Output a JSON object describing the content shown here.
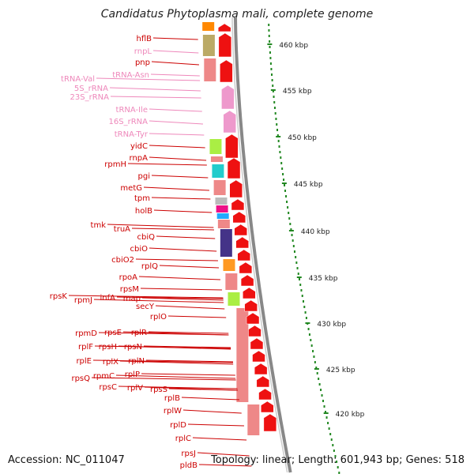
{
  "title": "Candidatus Phytoplasma mali, complete genome",
  "footer": {
    "accession": "Accession: NC_011047",
    "summary": "Topology: linear; Length: 601,943 bp; Genes: 518"
  },
  "colors": {
    "gene_label": "#cc0000",
    "rna_label": "#ee88bb",
    "scale_dots": "#228822",
    "arrow": "#ee1111",
    "backbone": "#888888"
  },
  "scale": [
    {
      "label": "460 kbp"
    },
    {
      "label": "455 kbp"
    },
    {
      "label": "450 kbp"
    },
    {
      "label": "445 kbp"
    },
    {
      "label": "440 kbp"
    },
    {
      "label": "435 kbp"
    },
    {
      "label": "430 kbp"
    },
    {
      "label": "425 kbp"
    },
    {
      "label": "420 kbp"
    }
  ],
  "labels": [
    {
      "text": "hflB",
      "kind": "gene"
    },
    {
      "text": "rnpL",
      "kind": "rna"
    },
    {
      "text": "pnp",
      "kind": "gene"
    },
    {
      "text": "tRNA-Asn",
      "kind": "rna"
    },
    {
      "text": "tRNA-Val",
      "kind": "rna"
    },
    {
      "text": "5S_rRNA",
      "kind": "rna"
    },
    {
      "text": "23S_rRNA",
      "kind": "rna"
    },
    {
      "text": "tRNA-Ile",
      "kind": "rna"
    },
    {
      "text": "16S_rRNA",
      "kind": "rna"
    },
    {
      "text": "tRNA-Tyr",
      "kind": "rna"
    },
    {
      "text": "yidC",
      "kind": "gene"
    },
    {
      "text": "rnpA",
      "kind": "gene"
    },
    {
      "text": "rpmH",
      "kind": "gene"
    },
    {
      "text": "pgi",
      "kind": "gene"
    },
    {
      "text": "metG",
      "kind": "gene"
    },
    {
      "text": "tpm",
      "kind": "gene"
    },
    {
      "text": "holB",
      "kind": "gene"
    },
    {
      "text": "tmk",
      "kind": "gene"
    },
    {
      "text": "truA",
      "kind": "gene"
    },
    {
      "text": "cbiQ",
      "kind": "gene"
    },
    {
      "text": "cbiO",
      "kind": "gene"
    },
    {
      "text": "cbiO2",
      "kind": "gene"
    },
    {
      "text": "rplQ",
      "kind": "gene"
    },
    {
      "text": "rpoA",
      "kind": "gene"
    },
    {
      "text": "rpsM",
      "kind": "gene"
    },
    {
      "text": "rpsK",
      "kind": "gene"
    },
    {
      "text": "rpmJ",
      "kind": "gene"
    },
    {
      "text": "infA",
      "kind": "gene"
    },
    {
      "text": "map",
      "kind": "gene"
    },
    {
      "text": "secY",
      "kind": "gene"
    },
    {
      "text": "rplO",
      "kind": "gene"
    },
    {
      "text": "rpmD",
      "kind": "gene"
    },
    {
      "text": "rpsE",
      "kind": "gene"
    },
    {
      "text": "rplR",
      "kind": "gene"
    },
    {
      "text": "rplF",
      "kind": "gene"
    },
    {
      "text": "rpsH",
      "kind": "gene"
    },
    {
      "text": "rpsN",
      "kind": "gene"
    },
    {
      "text": "rplE",
      "kind": "gene"
    },
    {
      "text": "rplX",
      "kind": "gene"
    },
    {
      "text": "rplN",
      "kind": "gene"
    },
    {
      "text": "rpsQ",
      "kind": "gene"
    },
    {
      "text": "rpmC",
      "kind": "gene"
    },
    {
      "text": "rplP",
      "kind": "gene"
    },
    {
      "text": "rpsC",
      "kind": "gene"
    },
    {
      "text": "rplV",
      "kind": "gene"
    },
    {
      "text": "rpsS",
      "kind": "gene"
    },
    {
      "text": "rplB",
      "kind": "gene"
    },
    {
      "text": "rplW",
      "kind": "gene"
    },
    {
      "text": "rplD",
      "kind": "gene"
    },
    {
      "text": "rplC",
      "kind": "gene"
    },
    {
      "text": "rpsJ",
      "kind": "gene"
    },
    {
      "text": "pldB",
      "kind": "gene"
    }
  ]
}
